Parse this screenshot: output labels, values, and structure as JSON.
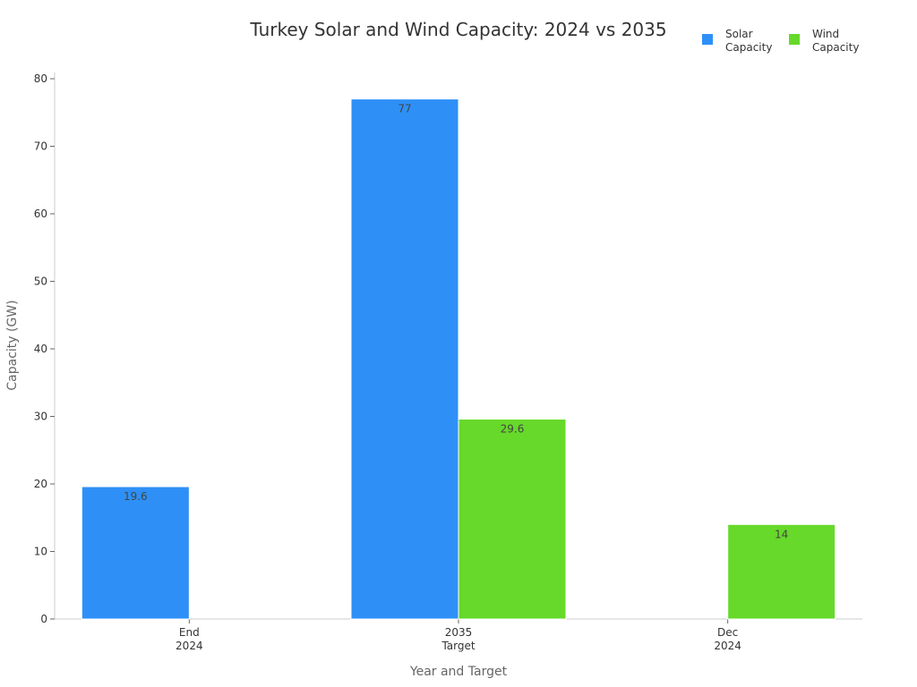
{
  "chart_data": {
    "type": "bar",
    "title": "Turkey Solar and Wind Capacity: 2024 vs 2035",
    "xlabel": "Year and Target",
    "ylabel": "Capacity (GW)",
    "ylim": [
      0,
      80
    ],
    "yticks": [
      0,
      10,
      20,
      30,
      40,
      50,
      60,
      70,
      80
    ],
    "categories": [
      [
        "End",
        "2024"
      ],
      [
        "2035",
        "Target"
      ],
      [
        "Dec",
        "2024"
      ]
    ],
    "series": [
      {
        "name": [
          "Solar",
          "Capacity"
        ],
        "color": "#2E90F7",
        "values": [
          19.6,
          77,
          null
        ]
      },
      {
        "name": [
          "Wind",
          "Capacity"
        ],
        "color": "#66D92A",
        "values": [
          null,
          29.6,
          14
        ]
      }
    ],
    "data_labels": [
      [
        "19.6",
        "77",
        ""
      ],
      [
        "",
        "29.6",
        "14"
      ]
    ],
    "legend_position": "top-right",
    "grid": false
  }
}
